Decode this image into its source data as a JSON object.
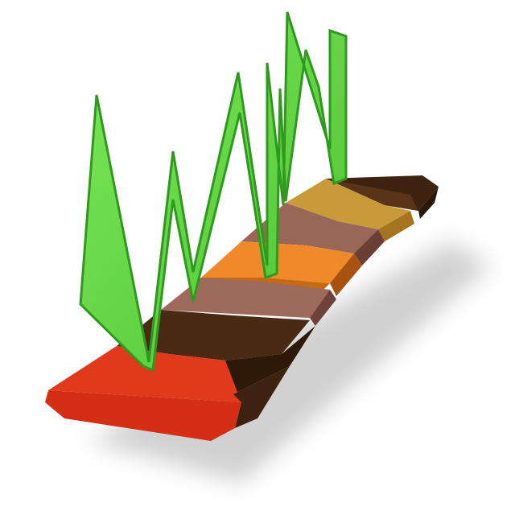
{
  "illustration": {
    "subject": "zigzag-line-over-segmented-bar-icon",
    "colors": {
      "background": "#ffffff",
      "line_fill": "#66dd44",
      "line_stroke": "#2f9a1e",
      "segments": [
        "#e0391c",
        "#4a2a14",
        "#9e6a5c",
        "#ee8a2a",
        "#8a5a4c",
        "#c89a3a",
        "#5a3418"
      ]
    },
    "segment_count": 7
  }
}
